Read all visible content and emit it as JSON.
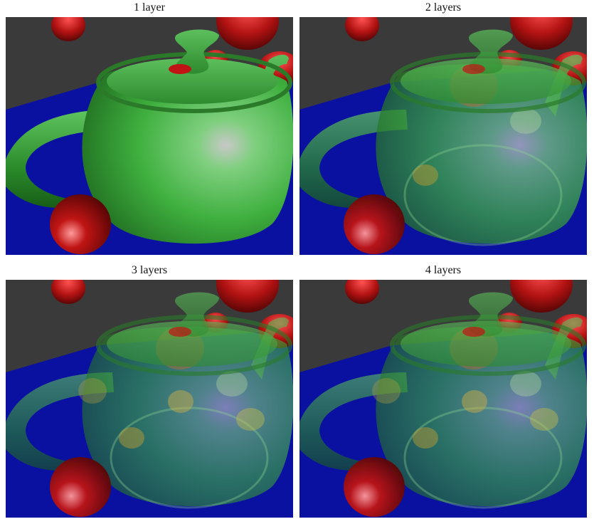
{
  "panels": [
    {
      "caption": "1 layer",
      "layers": 1
    },
    {
      "caption": "2 layers",
      "layers": 2
    },
    {
      "caption": "3 layers",
      "layers": 3
    },
    {
      "caption": "4 layers",
      "layers": 4
    }
  ],
  "colors": {
    "background": "#3a3a3a",
    "floor": "#0a10a0",
    "teapot": "#3fb03f",
    "spheres": "#c01414"
  }
}
